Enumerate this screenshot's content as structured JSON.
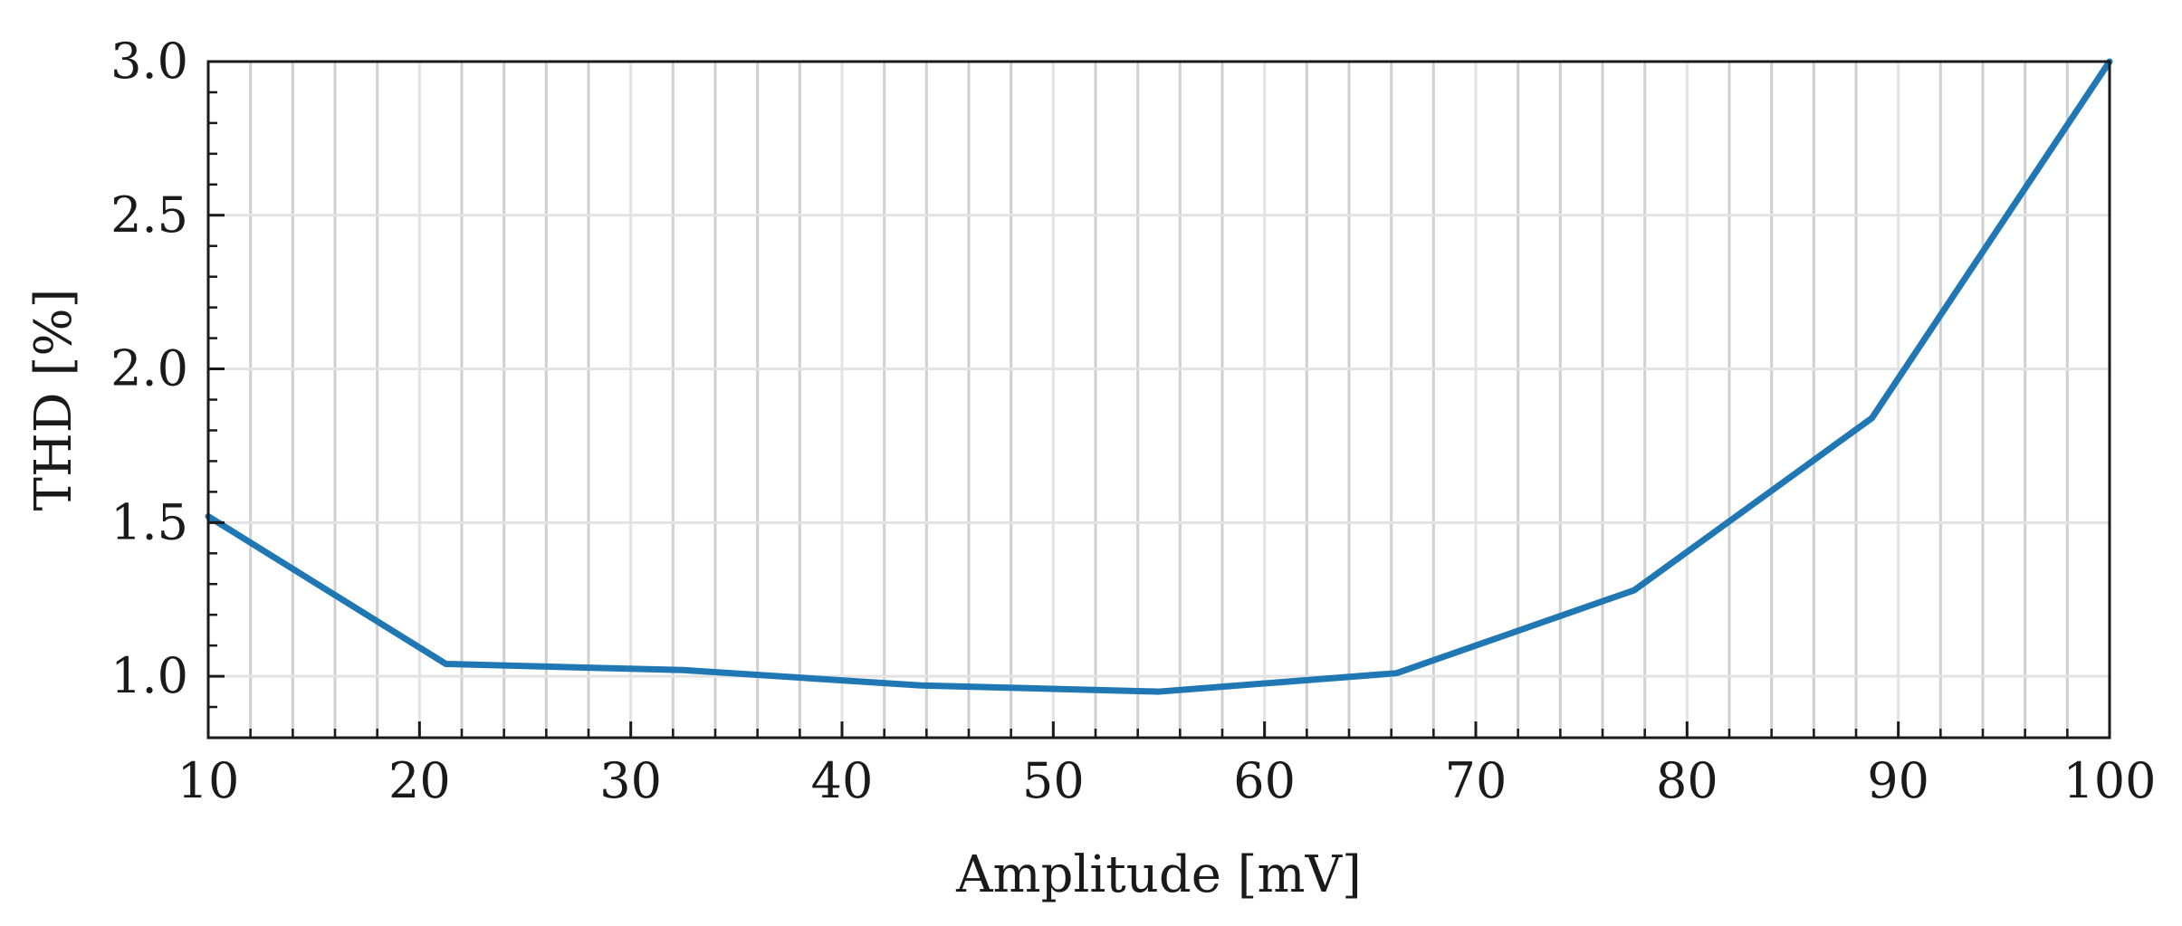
{
  "chart_data": {
    "type": "line",
    "title": "",
    "xlabel": "Amplitude [mV]",
    "ylabel": "THD [%]",
    "xlim": [
      10,
      100
    ],
    "ylim": [
      0.8,
      3.0
    ],
    "x_ticks": [
      10,
      20,
      30,
      40,
      50,
      60,
      70,
      80,
      90,
      100
    ],
    "x_tick_labels": [
      "10",
      "20",
      "30",
      "40",
      "50",
      "60",
      "70",
      "80",
      "90",
      "100"
    ],
    "x_minor_step": 2,
    "y_ticks": [
      1.0,
      1.5,
      2.0,
      2.5,
      3.0
    ],
    "y_tick_labels": [
      "1.0",
      "1.5",
      "2.0",
      "2.5",
      "3.0"
    ],
    "y_minor_step": 0.1,
    "grid": true,
    "series": [
      {
        "color": "#1f77b4",
        "x": [
          10,
          21.25,
          32.5,
          43.75,
          55,
          66.25,
          77.5,
          88.75,
          100
        ],
        "y": [
          1.52,
          1.04,
          1.02,
          0.97,
          0.95,
          1.01,
          1.28,
          1.84,
          3.0
        ]
      }
    ]
  }
}
